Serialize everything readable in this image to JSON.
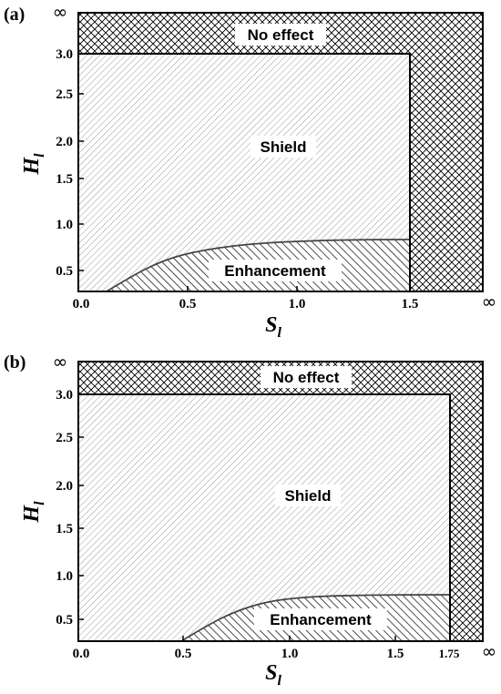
{
  "figure": {
    "panels": [
      {
        "label": "(a)",
        "ylabel": "H",
        "ylabel_sub": "l",
        "xlabel": "S",
        "xlabel_sub": "l",
        "xticks": [
          {
            "value": 0.0,
            "label": "0.0"
          },
          {
            "value": 0.5,
            "label": "0.5"
          },
          {
            "value": 1.0,
            "label": "1.0"
          },
          {
            "value": 1.5,
            "label": "1.5"
          }
        ],
        "yticks": [
          {
            "value": 0.5,
            "label": "0.5"
          },
          {
            "value": 1.0,
            "label": "1.0"
          },
          {
            "value": 1.5,
            "label": "1.5"
          },
          {
            "value": 2.0,
            "label": "2.0"
          },
          {
            "value": 2.5,
            "label": "2.5"
          },
          {
            "value": 3.0,
            "label": "3.0"
          }
        ],
        "infinity_symbol": "∞",
        "regions": {
          "no_effect": "No effect",
          "shield": "Shield",
          "enhancement": "Enhancement"
        },
        "boundaries": {
          "shield_s_max": 1.5,
          "shield_h_max": 3.0,
          "enhancement_curve": [
            [
              0.18,
              0.2
            ],
            [
              0.25,
              0.32
            ],
            [
              0.35,
              0.45
            ],
            [
              0.5,
              0.6
            ],
            [
              0.7,
              0.72
            ],
            [
              0.9,
              0.78
            ],
            [
              1.1,
              0.81
            ],
            [
              1.5,
              0.82
            ]
          ]
        }
      },
      {
        "label": "(b)",
        "ylabel": "H",
        "ylabel_sub": "l",
        "xlabel": "S",
        "xlabel_sub": "l",
        "xticks": [
          {
            "value": 0.0,
            "label": "0.0"
          },
          {
            "value": 0.5,
            "label": "0.5"
          },
          {
            "value": 1.0,
            "label": "1.0"
          },
          {
            "value": 1.5,
            "label": "1.5"
          },
          {
            "value": 1.75,
            "label": "1.75"
          }
        ],
        "yticks": [
          {
            "value": 0.5,
            "label": "0.5"
          },
          {
            "value": 1.0,
            "label": "1.0"
          },
          {
            "value": 1.5,
            "label": "1.5"
          },
          {
            "value": 2.0,
            "label": "2.0"
          },
          {
            "value": 2.5,
            "label": "2.5"
          },
          {
            "value": 3.0,
            "label": "3.0"
          }
        ],
        "infinity_symbol": "∞",
        "regions": {
          "no_effect": "No effect",
          "shield": "Shield",
          "enhancement": "Enhancement"
        },
        "boundaries": {
          "shield_s_max": 1.75,
          "shield_h_max": 3.0,
          "enhancement_curve": [
            [
              0.5,
              0.33
            ],
            [
              0.6,
              0.45
            ],
            [
              0.75,
              0.6
            ],
            [
              0.9,
              0.72
            ],
            [
              1.05,
              0.79
            ],
            [
              1.25,
              0.82
            ],
            [
              1.75,
              0.82
            ]
          ]
        }
      }
    ]
  }
}
